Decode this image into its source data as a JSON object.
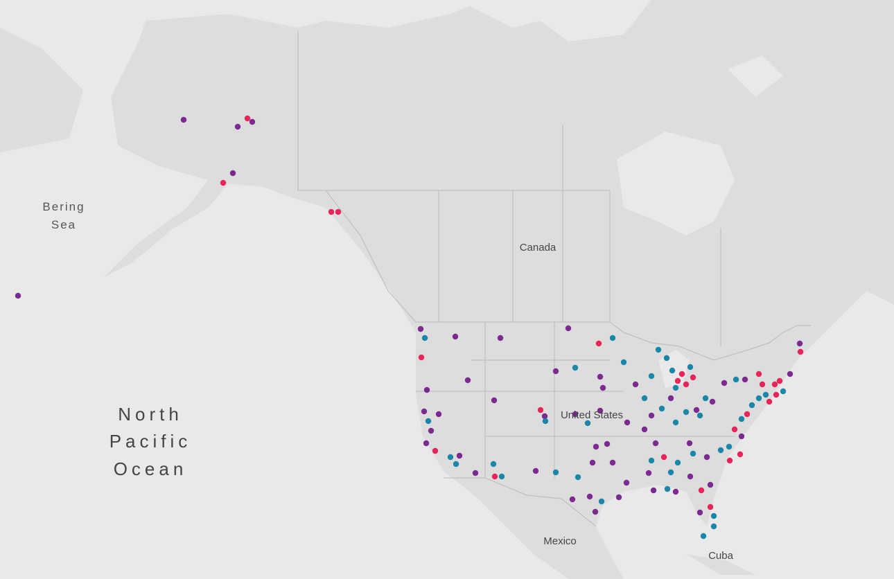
{
  "labels": {
    "bering_sea": [
      "Bering",
      "Sea"
    ],
    "canada": "Canada",
    "north_pacific_ocean": [
      "North",
      "Pacific",
      "Ocean"
    ],
    "united_states": "United States",
    "mexico": "Mexico",
    "cuba": "Cuba"
  }
}
